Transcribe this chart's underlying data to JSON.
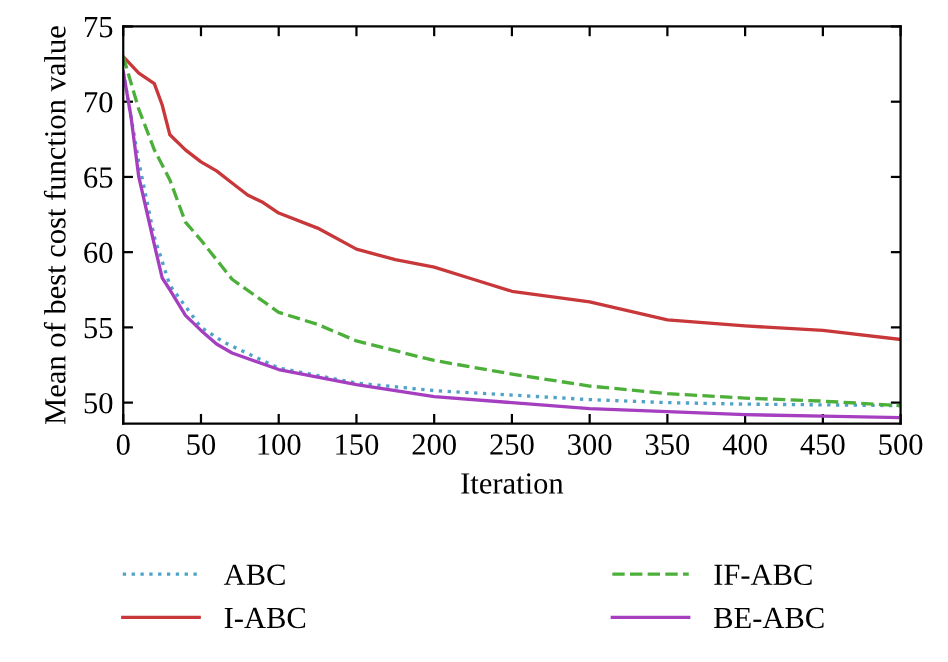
{
  "chart_data": {
    "type": "line",
    "xlabel": "Iteration",
    "ylabel": "Mean of best cost function value",
    "xlim": [
      0,
      500
    ],
    "ylim": [
      48.6,
      75
    ],
    "xticks": [
      0,
      50,
      100,
      150,
      200,
      250,
      300,
      350,
      400,
      450,
      500
    ],
    "yticks": [
      50,
      55,
      60,
      65,
      70,
      75
    ],
    "grid": false,
    "legend": "bottom",
    "marker": "none",
    "series": [
      {
        "name": "ABC",
        "color": "#4fa3c8",
        "line_style": "dotted",
        "x": [
          0,
          10,
          20,
          30,
          50,
          65,
          100,
          150,
          200,
          250,
          300,
          350,
          400,
          500
        ],
        "values": [
          72,
          66,
          61,
          57.8,
          55,
          54,
          52.3,
          51.3,
          50.8,
          50.5,
          50.2,
          50.0,
          49.9,
          49.8
        ]
      },
      {
        "name": "I-ABC",
        "color": "#c8373a",
        "line_style": "solid",
        "x": [
          0,
          10,
          20,
          25,
          30,
          40,
          50,
          60,
          70,
          80,
          90,
          100,
          125,
          150,
          175,
          200,
          225,
          250,
          300,
          350,
          400,
          450,
          500
        ],
        "values": [
          73,
          71.9,
          71.2,
          69.8,
          67.8,
          66.8,
          66.0,
          65.4,
          64.6,
          63.8,
          63.3,
          62.6,
          61.6,
          60.2,
          59.5,
          59.0,
          58.2,
          57.4,
          56.7,
          55.5,
          55.1,
          54.8,
          54.2
        ]
      },
      {
        "name": "IF-ABC",
        "color": "#4caf3a",
        "line_style": "dashed",
        "x": [
          0,
          10,
          20,
          30,
          40,
          50,
          70,
          100,
          125,
          150,
          200,
          250,
          300,
          350,
          400,
          450,
          500
        ],
        "values": [
          73,
          69.5,
          66.8,
          64.8,
          62,
          60.8,
          58.2,
          56,
          55.2,
          54.1,
          52.8,
          51.9,
          51.1,
          50.6,
          50.3,
          50.1,
          49.8
        ]
      },
      {
        "name": "BE-ABC",
        "color": "#a53fc0",
        "line_style": "solid",
        "x": [
          0,
          5,
          10,
          20,
          25,
          30,
          40,
          50,
          60,
          70,
          100,
          150,
          200,
          250,
          300,
          350,
          400,
          450,
          500
        ],
        "values": [
          72,
          69,
          65,
          60.5,
          58.3,
          57.5,
          55.8,
          54.8,
          53.9,
          53.3,
          52.2,
          51.2,
          50.4,
          50.0,
          49.6,
          49.4,
          49.2,
          49.1,
          49.0
        ]
      }
    ]
  }
}
